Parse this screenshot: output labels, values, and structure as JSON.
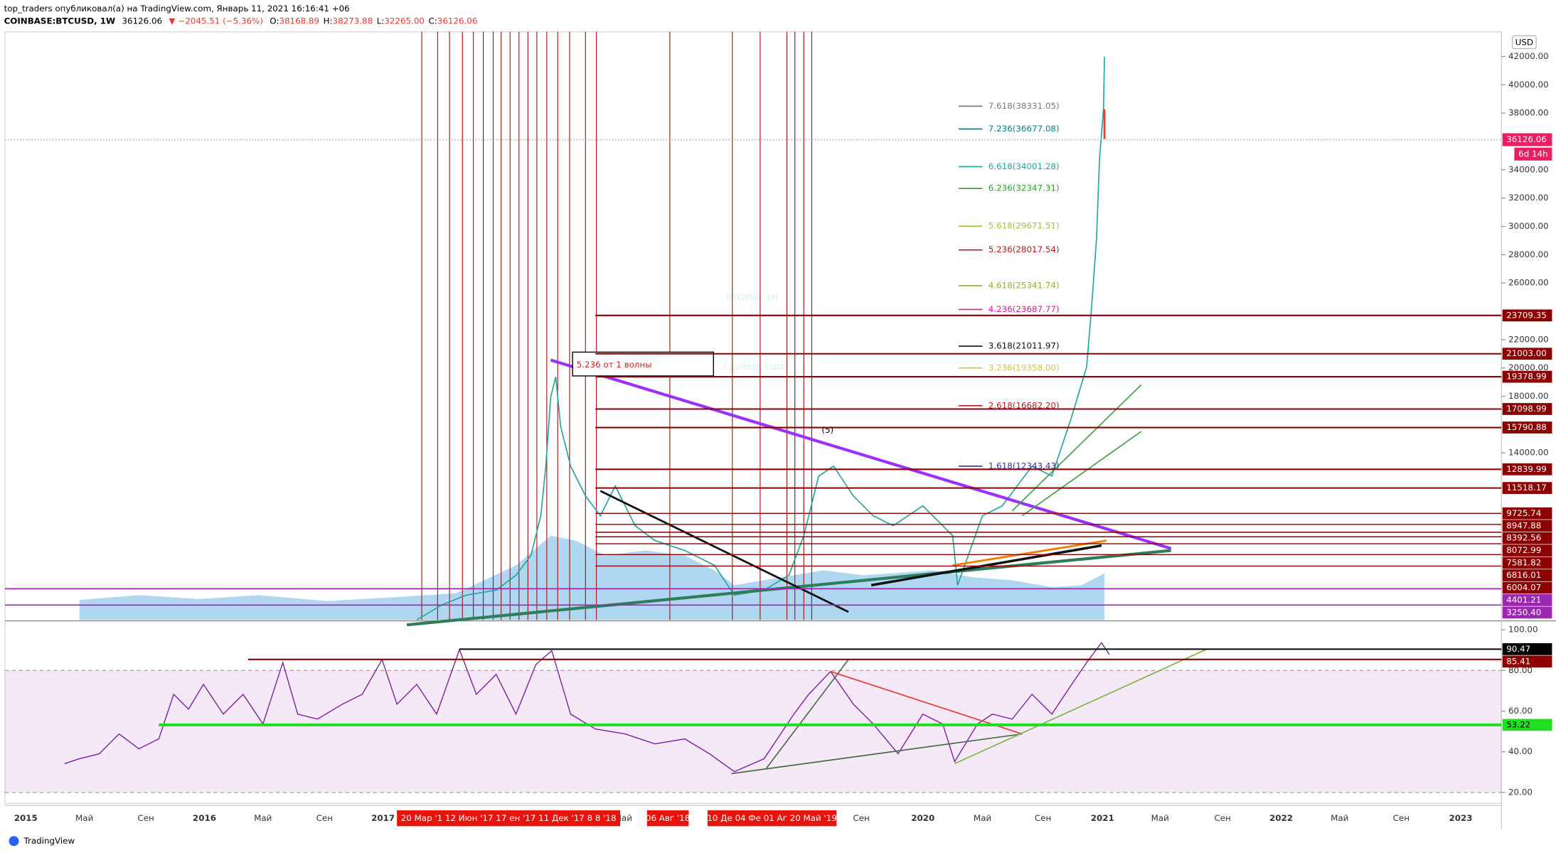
{
  "header": {
    "publisher": "top_traders опубликовал(а) на TradingView.com, Январь 11, 2021 16:16:41 +06",
    "symbol": "COINBASE:BTCUSD, 1W",
    "last": "36126.06",
    "change": "▼ −2045.51 (−5.36%)",
    "ohlc": [
      {
        "label": "O:",
        "value": "38168.89"
      },
      {
        "label": "H:",
        "value": "38273.88"
      },
      {
        "label": "L:",
        "value": "32265.00"
      },
      {
        "label": "C:",
        "value": "36126.06"
      }
    ]
  },
  "watermark": {
    "title": "BTCUSD, 1H",
    "subtitle": "/ Доллар США"
  },
  "annotation": "5.236 от 1 волны",
  "wave_label": "(5)",
  "chart_data": [
    {
      "type": "levels",
      "currency": "USD",
      "ylim": [
        2200,
        43750
      ],
      "yticks": [
        {
          "value": 42000,
          "label": "42000.00"
        },
        {
          "value": 40000,
          "label": "40000.00"
        },
        {
          "value": 38000,
          "label": "38000.00"
        },
        {
          "value": 34000,
          "label": "34000.00"
        },
        {
          "value": 32000,
          "label": "32000.00"
        },
        {
          "value": 30000,
          "label": "30000.00"
        },
        {
          "value": 28000,
          "label": "28000.00"
        },
        {
          "value": 26000,
          "label": "26000.00"
        },
        {
          "value": 22000,
          "label": "22000.00"
        },
        {
          "value": 20000,
          "label": "20000.00"
        },
        {
          "value": 18000,
          "label": "18000.00"
        },
        {
          "value": 14000,
          "label": "14000.00"
        }
      ],
      "last_price": 36126.06,
      "last_color": "#e91e63",
      "countdown": "6d 14h",
      "levels": [
        23709.35,
        {
          "value": 21003,
          "label": "21003.00"
        },
        19378.99,
        17098.99,
        15790.88,
        12839.99,
        11518.17,
        9725.74,
        8947.88,
        8392.56,
        8072.99,
        7581.82,
        6816.01,
        6004.07,
        4401.21,
        {
          "value": 3250.4,
          "label": "3250.40"
        }
      ],
      "level_colors": [
        "#8b0000",
        "#8b0000",
        "#8b0000",
        "#8b0000",
        "#8b0000",
        "#8b0000",
        "#8b0000",
        "#8b0000",
        "#8b0000",
        "#8b0000",
        "#8b0000",
        "#8b0000",
        "#8b0000",
        "#8b0000",
        "#9c27b0",
        "#9c27b0"
      ],
      "fib_labels": [
        "7.618(38331.05)",
        "7.236(36677.08)",
        "6.618(34001.28)",
        "6.236(32347.31)",
        "5.618(29671.51)",
        "5.236(28017.54)",
        "4.618(25341.74)",
        "4.236(23687.77)",
        "3.618(21011.97)",
        "3.236(19358.00)",
        "2.618(16682.20)",
        "1.618(12343.43)"
      ],
      "fib_colors": [
        "#787b86",
        "#00838f",
        "#26a69a",
        "#2e9e2e",
        "#9bc53d",
        "#b71c1c",
        "#9bab2a",
        "#d81b9a",
        "#111111",
        "#c9c94a",
        "#b71c1c",
        "#3f2aa8"
      ]
    },
    {
      "type": "levels",
      "ylim": [
        14.6,
        103.4
      ],
      "yticks": [
        {
          "value": 100,
          "label": "100.00"
        },
        {
          "value": 80,
          "label": "80.00"
        },
        {
          "value": 60,
          "label": "60.00"
        },
        {
          "value": 40,
          "label": "40.00"
        },
        {
          "value": 20,
          "label": "20.00"
        }
      ],
      "levels": [
        90.47,
        85.41,
        53.22
      ],
      "level_colors": [
        "#000000",
        "#8b0000",
        "#22dd22"
      ]
    }
  ],
  "time_axis": [
    "2015",
    "Май",
    "Сен",
    "2016",
    "Май",
    "Сен",
    "2017",
    "Май",
    "Сен",
    "2020",
    "Май",
    "Сен",
    "2021",
    "Май",
    "Сен",
    "2022",
    "Май",
    "Сен",
    "2023"
  ],
  "date_tags": [
    "20 Мар '1  12 Июн '17  17  ен '17  11 Дек '17  8  8  '18",
    "06 Авг '18",
    "10 Де  04 Фе  01 Аг  20 Май '19"
  ],
  "footer": "TradingView"
}
